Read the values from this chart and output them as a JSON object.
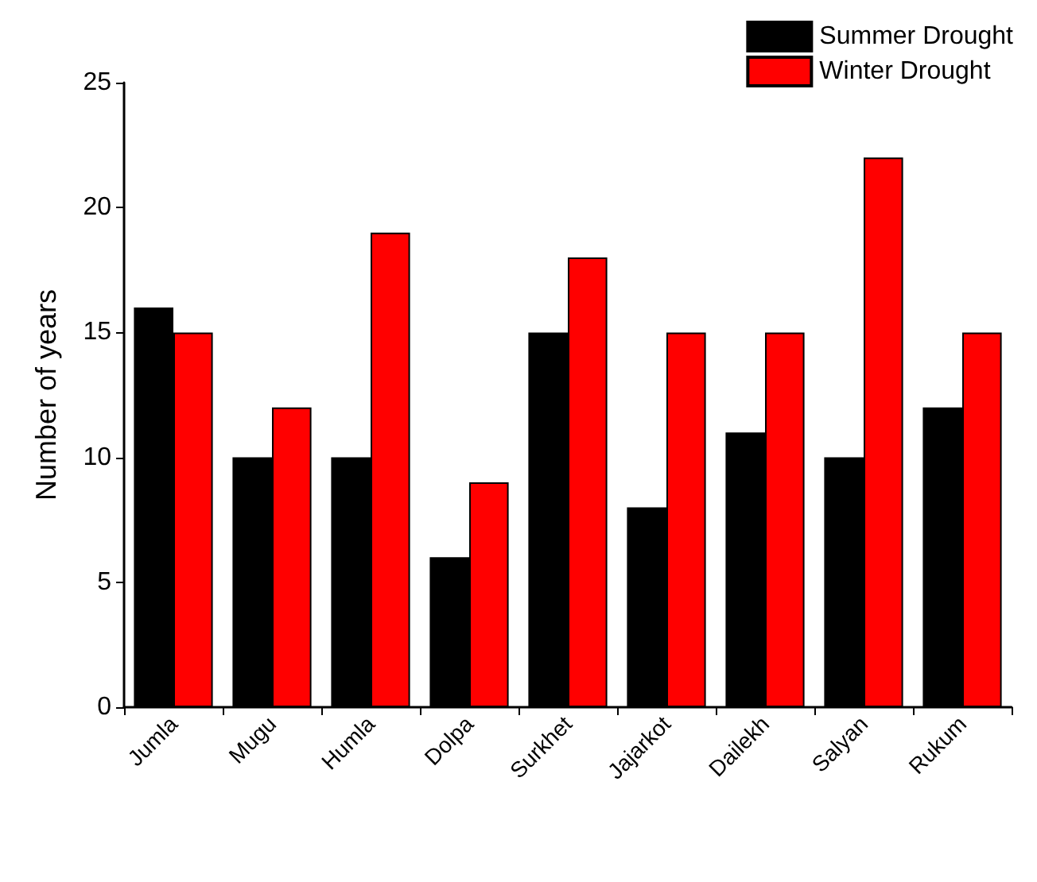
{
  "chart_data": {
    "type": "bar",
    "ylabel": "Number of years",
    "categories": [
      "Jumla",
      "Mugu",
      "Humla",
      "Dolpa",
      "Surkhet",
      "Jajarkot",
      "Dailekh",
      "Salyan",
      "Rukum"
    ],
    "series": [
      {
        "name": "Summer Drought",
        "color": "#000000",
        "values": [
          16,
          10,
          10,
          6,
          15,
          8,
          11,
          10,
          12
        ]
      },
      {
        "name": "Winter Drought",
        "color": "#ff0000",
        "values": [
          15,
          12,
          19,
          9,
          18,
          15,
          15,
          22,
          15
        ]
      }
    ],
    "ylim": [
      0,
      25
    ],
    "yticks": [
      0,
      5,
      10,
      15,
      20,
      25
    ],
    "grid": false,
    "legend": "top right"
  }
}
